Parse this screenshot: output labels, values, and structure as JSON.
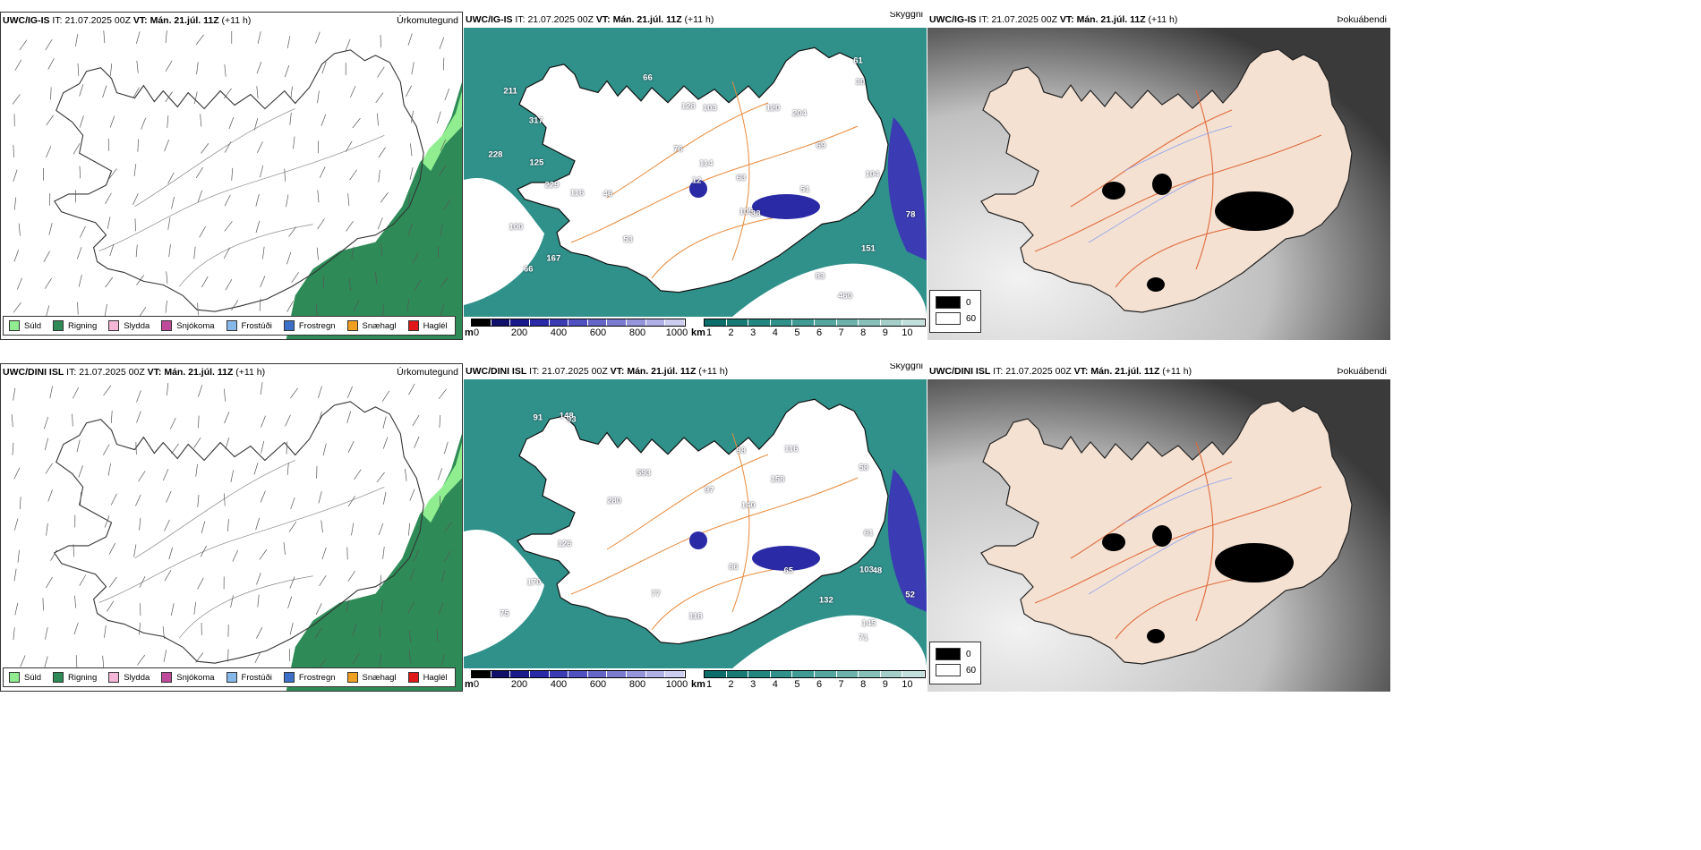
{
  "rows": [
    {
      "model": "UWC/IG-IS",
      "it_label": "IT:",
      "it_value": "21.07.2025 00Z",
      "vt_label": "VT:",
      "vt_value": "Mán. 21.júl. 11Z",
      "lead": "(+11 h)"
    },
    {
      "model": "UWC/DINI ISL",
      "it_label": "IT:",
      "it_value": "21.07.2025 00Z",
      "vt_label": "VT:",
      "vt_value": "Mán. 21.júl. 11Z",
      "lead": "(+11 h)"
    }
  ],
  "panels": {
    "precip": {
      "title": "Úrkomutegund"
    },
    "visibility": {
      "title": "Skyggni"
    },
    "fog": {
      "title": "Þokuábendi"
    }
  },
  "precip_legend": [
    {
      "label": "Súld",
      "color": "#90ee90"
    },
    {
      "label": "Rigning",
      "color": "#2e8b57"
    },
    {
      "label": "Slydda",
      "color": "#f5b6d8"
    },
    {
      "label": "Snjókoma",
      "color": "#c04a9a"
    },
    {
      "label": "Frostúði",
      "color": "#87b8ea"
    },
    {
      "label": "Frostregn",
      "color": "#3c70c8"
    },
    {
      "label": "Snæhagl",
      "color": "#f0a020"
    },
    {
      "label": "Haglél",
      "color": "#e01818"
    }
  ],
  "visibility_legend": {
    "height_unit": "m",
    "height_ticks": [
      "0",
      "200",
      "400",
      "600",
      "800",
      "1000"
    ],
    "height_colors": [
      "#000000",
      "#10106a",
      "#1a1a8c",
      "#2a2aa6",
      "#3b3bb4",
      "#5050c0",
      "#6565c8",
      "#7b7bd0",
      "#9595dc",
      "#b0b0e6",
      "#cdcdf0"
    ],
    "vis_unit": "km",
    "vis_ticks": [
      "1",
      "2",
      "3",
      "4",
      "5",
      "6",
      "7",
      "8",
      "9",
      "10"
    ],
    "vis_colors": [
      "#0c6e6a",
      "#177a75",
      "#228680",
      "#2f918a",
      "#3f9b93",
      "#55a69e",
      "#6db2aa",
      "#87c0b8",
      "#a3cfc8",
      "#c2e0db"
    ]
  },
  "fog_legend": [
    {
      "label": "0",
      "color": "#000000"
    },
    {
      "label": "60",
      "color": "#ffffff"
    }
  ],
  "vis_labels_top": [
    "460",
    "229",
    "105",
    "211",
    "151",
    "317",
    "167",
    "46",
    "204",
    "128",
    "120",
    "83",
    "53",
    "66",
    "63",
    "100",
    "51",
    "114",
    "228",
    "66",
    "61",
    "103",
    "69",
    "78",
    "104",
    "125",
    "116",
    "12",
    "76",
    "30",
    "38"
  ],
  "vis_labels_bottom": [
    "170",
    "140",
    "103",
    "52",
    "98",
    "132",
    "97",
    "158",
    "48",
    "75",
    "93",
    "86",
    "61",
    "118",
    "91",
    "77",
    "71",
    "58",
    "145",
    "65",
    "126",
    "116",
    "280",
    "593",
    "148"
  ]
}
